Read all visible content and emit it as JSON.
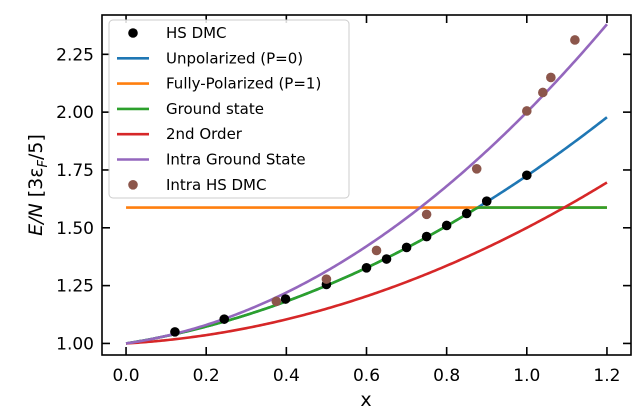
{
  "chart_data": {
    "type": "line",
    "xlabel": "x",
    "ylabel_main": "E/N",
    "ylabel_unit_prefix": "[3ε",
    "ylabel_unit_sub": "F",
    "ylabel_unit_suffix": "/5]",
    "xlim": [
      -0.06,
      1.26
    ],
    "ylim": [
      0.95,
      2.42
    ],
    "xticks": [
      0.0,
      0.2,
      0.4,
      0.6,
      0.8,
      1.0,
      1.2
    ],
    "xtick_labels": [
      "0.0",
      "0.2",
      "0.4",
      "0.6",
      "0.8",
      "1.0",
      "1.2"
    ],
    "yticks": [
      1.0,
      1.25,
      1.5,
      1.75,
      2.0,
      2.25
    ],
    "ytick_labels": [
      "1.00",
      "1.25",
      "1.50",
      "1.75",
      "2.00",
      "2.25"
    ],
    "legend_position": "top-left",
    "series": [
      {
        "name": "HS DMC",
        "kind": "scatter",
        "color": "#000000",
        "x": [
          0.122,
          0.245,
          0.398,
          0.5,
          0.6,
          0.65,
          0.7,
          0.75,
          0.8,
          0.85,
          0.9,
          1.0
        ],
        "y": [
          1.05,
          1.105,
          1.192,
          1.255,
          1.327,
          1.365,
          1.415,
          1.462,
          1.51,
          1.562,
          1.615,
          1.727
        ]
      },
      {
        "name": "Unpolarized (P=0)",
        "kind": "line",
        "color": "#1f77b4",
        "formula": "unpolarized",
        "x_range": [
          0.0,
          1.2
        ]
      },
      {
        "name": "Fully-Polarized (P=1)",
        "kind": "line",
        "color": "#ff7f0e",
        "formula": "polarized",
        "x_range": [
          0.0,
          1.2
        ]
      },
      {
        "name": "Ground state",
        "kind": "line",
        "color": "#2ca02c",
        "formula": "ground",
        "x_range": [
          0.0,
          1.2
        ]
      },
      {
        "name": "2nd Order",
        "kind": "line",
        "color": "#d62728",
        "formula": "second_order",
        "x_range": [
          0.0,
          1.2
        ]
      },
      {
        "name": "Intra Ground State",
        "kind": "line",
        "color": "#9467bd",
        "formula": "intra_ground",
        "x_range": [
          0.0,
          1.2
        ]
      },
      {
        "name": "Intra HS DMC",
        "kind": "scatter",
        "color": "#8c564b",
        "x": [
          0.375,
          0.5,
          0.625,
          0.75,
          0.875,
          1.0,
          1.04,
          1.06,
          1.12
        ],
        "y": [
          1.182,
          1.278,
          1.402,
          1.558,
          1.755,
          2.005,
          2.085,
          2.15,
          2.312
        ]
      }
    ]
  }
}
